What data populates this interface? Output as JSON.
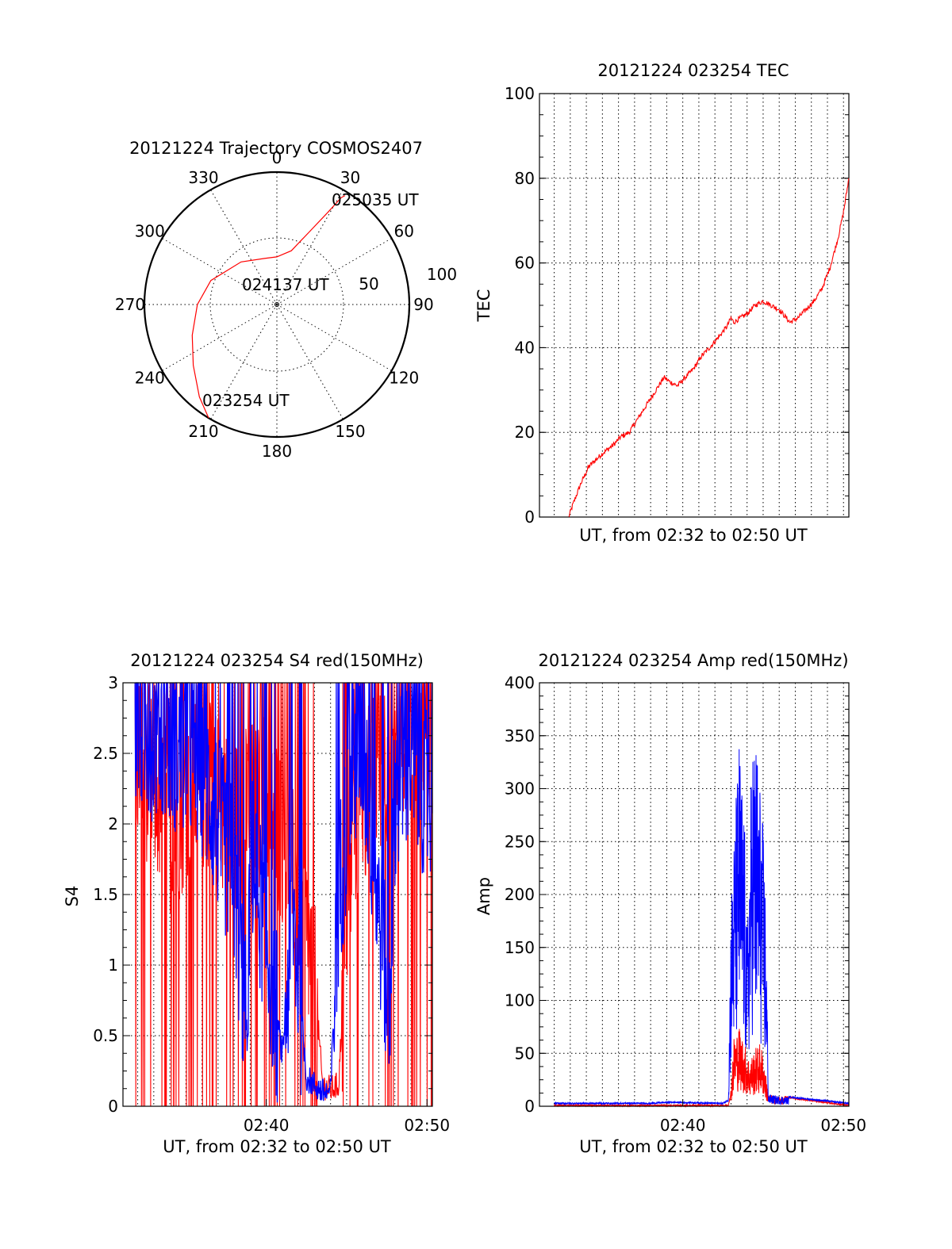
{
  "chart_data": [
    {
      "type": "polar",
      "title": "20121224 Trajectory COSMOS2407",
      "azimuth_labels": [
        "0",
        "30",
        "60",
        "90",
        "120",
        "150",
        "180",
        "210",
        "240",
        "270",
        "300",
        "330"
      ],
      "radial_labels": [
        "50",
        "100"
      ],
      "radial_values": [
        50,
        100
      ],
      "grid": true,
      "series": [
        {
          "color": "#ff0000",
          "points_az_r": [
            [
              211,
              100
            ],
            [
              220,
              91
            ],
            [
              234,
              78
            ],
            [
              250,
              68
            ],
            [
              270,
              60
            ],
            [
              290,
              53
            ],
            [
              320,
              42
            ],
            [
              345,
              36
            ],
            [
              0,
              36
            ],
            [
              15,
              42
            ],
            [
              24,
              60
            ],
            [
              29,
              80
            ],
            [
              31,
              94
            ],
            [
              32,
              97
            ]
          ]
        }
      ],
      "annotations": [
        "025035 UT",
        "024137 UT",
        "023254 UT"
      ]
    },
    {
      "type": "line",
      "title": "20121224 023254 TEC",
      "xlabel": "UT, from 02:32 to 02:50 UT",
      "ylabel": "TEC",
      "xlim": [
        "02:31:05",
        "02:50:20"
      ],
      "ylim": [
        0,
        100
      ],
      "yticks": [
        "0",
        "20",
        "40",
        "60",
        "80",
        "100"
      ],
      "grid": true,
      "series": [
        {
          "color": "#ff0000",
          "x": [
            "02:32:54",
            "02:33:10",
            "02:33:40",
            "02:34:10",
            "02:35:00",
            "02:35:40",
            "02:36:10",
            "02:36:40",
            "02:37:00",
            "02:37:20",
            "02:38:00",
            "02:38:30",
            "02:38:50",
            "02:39:10",
            "02:39:40",
            "02:40:10",
            "02:40:40",
            "02:41:10",
            "02:41:40",
            "02:42:20",
            "02:42:45",
            "02:43:00",
            "02:43:10",
            "02:44:00",
            "02:44:30",
            "02:45:00",
            "02:45:30",
            "02:46:00",
            "02:46:40",
            "02:47:10",
            "02:47:40",
            "02:48:10",
            "02:48:40",
            "02:49:10",
            "02:49:40",
            "02:50:00",
            "02:50:20"
          ],
          "y": [
            0,
            3,
            8,
            12,
            15,
            17,
            19,
            20,
            22,
            24,
            28,
            31,
            33,
            32,
            31,
            33,
            35,
            38,
            40,
            43,
            45,
            47,
            46,
            48,
            50,
            51,
            50,
            49,
            46,
            47,
            49,
            51,
            54,
            59,
            66,
            72,
            80
          ]
        }
      ]
    },
    {
      "type": "line",
      "title": "20121224 023254 S4 red(150MHz)",
      "xlabel": "UT, from 02:32 to 02:50 UT",
      "ylabel": "S4",
      "xlim": [
        "02:31:05",
        "02:50:20"
      ],
      "ylim": [
        0,
        3
      ],
      "yticks": [
        "0",
        "0.5",
        "1",
        "1.5",
        "2",
        "2.5",
        "3"
      ],
      "xticks": [
        "02:40",
        "02:50"
      ],
      "grid": true,
      "series": [
        {
          "color": "#ff0000",
          "x": [
            "02:32:00",
            "02:34:00",
            "02:36:00",
            "02:38:00",
            "02:40:00",
            "02:41:00",
            "02:42:00",
            "02:42:30",
            "02:43:00",
            "02:43:30",
            "02:44:00",
            "02:44:30",
            "02:45:00",
            "02:45:30",
            "02:46:00",
            "02:47:00",
            "02:48:00",
            "02:49:00",
            "02:50:00"
          ],
          "y": [
            2.5,
            2.0,
            2.3,
            2.0,
            2.2,
            1.9,
            1.5,
            1.2,
            0.9,
            0.15,
            0.12,
            0.15,
            1.3,
            2.0,
            2.2,
            2.4,
            2.6,
            2.8,
            2.7
          ]
        },
        {
          "color": "#0000ff",
          "x": [
            "02:32:00",
            "02:34:00",
            "02:36:00",
            "02:37:00",
            "02:38:00",
            "02:38:50",
            "02:39:00",
            "02:40:00",
            "02:41:00",
            "02:41:40",
            "02:42:30",
            "02:43:00",
            "02:43:30",
            "02:44:00",
            "02:44:30",
            "02:45:00",
            "02:45:30",
            "02:46:00",
            "02:47:00",
            "02:47:40",
            "02:48:00",
            "02:49:00",
            "02:50:00"
          ],
          "y": [
            2.7,
            2.6,
            2.4,
            2.0,
            1.6,
            0.45,
            1.8,
            1.2,
            0.35,
            1.4,
            0.2,
            0.15,
            0.1,
            0.1,
            1.5,
            2.0,
            2.4,
            2.6,
            1.4,
            0.65,
            2.2,
            2.5,
            2.2
          ]
        }
      ]
    },
    {
      "type": "line",
      "title": "20121224 023254 Amp red(150MHz)",
      "xlabel": "UT, from 02:32 to 02:50 UT",
      "ylabel": "Amp",
      "xlim": [
        "02:31:05",
        "02:50:20"
      ],
      "ylim": [
        0,
        400
      ],
      "yticks": [
        "0",
        "50",
        "100",
        "150",
        "200",
        "250",
        "300",
        "350",
        "400"
      ],
      "xticks": [
        "02:40",
        "02:50"
      ],
      "grid": true,
      "series": [
        {
          "color": "#ff0000",
          "x": [
            "02:32:00",
            "02:42:50",
            "02:42:58",
            "02:43:10",
            "02:43:30",
            "02:43:50",
            "02:44:10",
            "02:44:30",
            "02:44:50",
            "02:45:00",
            "02:45:20",
            "02:50:20"
          ],
          "y": [
            0,
            0,
            10,
            60,
            70,
            55,
            40,
            50,
            55,
            45,
            10,
            0
          ]
        },
        {
          "color": "#0000ff",
          "x": [
            "02:32:00",
            "02:38:00",
            "02:39:10",
            "02:42:30",
            "02:42:50",
            "02:43:00",
            "02:43:30",
            "02:43:50",
            "02:44:00",
            "02:44:20",
            "02:44:40",
            "02:45:00",
            "02:45:10",
            "02:45:20",
            "02:50:20"
          ],
          "y": [
            2,
            2,
            3,
            2,
            5,
            180,
            320,
            250,
            150,
            330,
            310,
            240,
            180,
            10,
            2
          ]
        }
      ]
    }
  ]
}
